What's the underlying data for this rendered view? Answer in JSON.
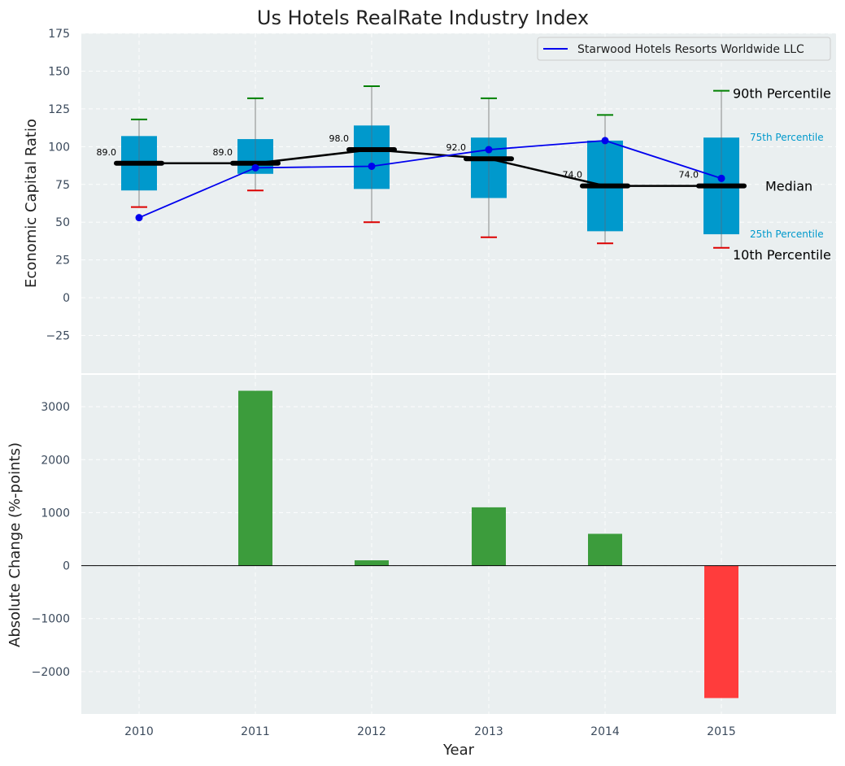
{
  "chart_data": [
    {
      "type": "box",
      "title": "Us Hotels RealRate Industry Index",
      "ylabel": "Economic Capital Ratio",
      "ylim": [
        -50,
        175
      ],
      "yticks": [
        -25,
        0,
        25,
        50,
        75,
        100,
        125,
        150,
        175
      ],
      "ytick_labels": [
        "−25",
        "0",
        "25",
        "50",
        "75",
        "100",
        "125",
        "150",
        "175"
      ],
      "categories": [
        "2010",
        "2011",
        "2012",
        "2013",
        "2014",
        "2015"
      ],
      "grid": true,
      "legend_position": "top-right",
      "boxes": [
        {
          "p10": 60,
          "p25": 71,
          "median": 89,
          "p75": 107,
          "p90": 118,
          "median_label": "89.0"
        },
        {
          "p10": 71,
          "p25": 82,
          "median": 89,
          "p75": 105,
          "p90": 132,
          "median_label": "89.0"
        },
        {
          "p10": 50,
          "p25": 72,
          "median": 98,
          "p75": 114,
          "p90": 140,
          "median_label": "98.0"
        },
        {
          "p10": 40,
          "p25": 66,
          "median": 92,
          "p75": 106,
          "p90": 132,
          "median_label": "92.0"
        },
        {
          "p10": 36,
          "p25": 44,
          "median": 74,
          "p75": 104,
          "p90": 121,
          "median_label": "74.0"
        },
        {
          "p10": 33,
          "p25": 42,
          "median": 74,
          "p75": 106,
          "p90": 137,
          "median_label": "74.0"
        }
      ],
      "series": [
        {
          "name": "Starwood Hotels Resorts Worldwide LLC",
          "color": "#0000ee",
          "values": [
            53,
            86,
            87,
            98,
            104,
            79
          ]
        }
      ],
      "annotations": {
        "p90": "90th Percentile",
        "p75": "75th Percentile",
        "median": "Median",
        "p25": "25th Percentile",
        "p10": "10th Percentile"
      },
      "colors": {
        "box": "#0099cc",
        "median": "#000000",
        "whisker_high": "#008000",
        "whisker_low": "#dd0000",
        "annotation_box": "#0099cc"
      }
    },
    {
      "type": "bar",
      "xlabel": "Year",
      "ylabel": "Absolute Change (%-points)",
      "ylim": [
        -2800,
        3600
      ],
      "yticks": [
        -2000,
        -1000,
        0,
        1000,
        2000,
        3000
      ],
      "ytick_labels": [
        "−2000",
        "−1000",
        "0",
        "1000",
        "2000",
        "3000"
      ],
      "categories": [
        "2010",
        "2011",
        "2012",
        "2013",
        "2014",
        "2015"
      ],
      "values": [
        0,
        3300,
        100,
        1100,
        600,
        -2500
      ],
      "colors": {
        "positive": "#3c9c3c",
        "negative": "#ff3c3c"
      },
      "grid": true
    }
  ]
}
